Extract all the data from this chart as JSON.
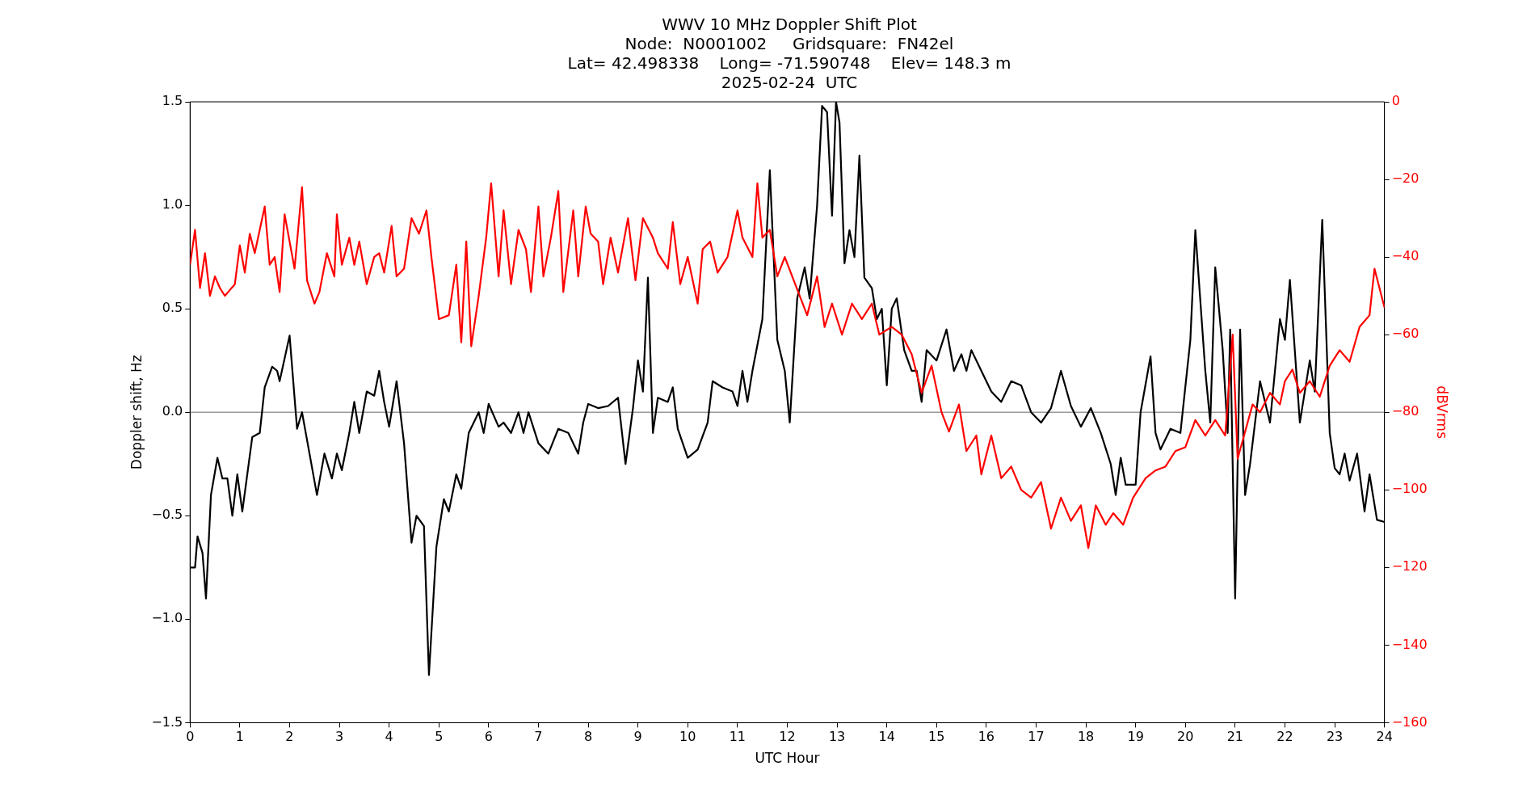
{
  "chart_data": {
    "type": "line",
    "title": "WWV 10 MHz Doppler Shift Plot\nNode:  N0001002     Gridsquare:  FN42el\nLat= 42.498338    Long= -71.590748    Elev= 148.3 m\n2025-02-24  UTC",
    "xlabel": "UTC Hour",
    "ylabel": "Doppler shift, Hz",
    "y2label": "dBVrms",
    "xlim": [
      0,
      24
    ],
    "xticks": [
      0,
      1,
      2,
      3,
      4,
      5,
      6,
      7,
      8,
      9,
      10,
      11,
      12,
      13,
      14,
      15,
      16,
      17,
      18,
      19,
      20,
      21,
      22,
      23,
      24
    ],
    "ylim": [
      -1.5,
      1.5
    ],
    "yticks": [
      {
        "value": -1.5,
        "label": "−1.5"
      },
      {
        "value": -1,
        "label": "−1.0"
      },
      {
        "value": -0.5,
        "label": "−0.5"
      },
      {
        "value": 0,
        "label": "0.0"
      },
      {
        "value": 0.5,
        "label": "0.5"
      },
      {
        "value": 1,
        "label": "1.0"
      },
      {
        "value": 1.5,
        "label": "1.5"
      }
    ],
    "y2lim": [
      -160,
      0
    ],
    "y2ticks": [
      {
        "value": -160,
        "label": "−160"
      },
      {
        "value": -140,
        "label": "−140"
      },
      {
        "value": -120,
        "label": "−120"
      },
      {
        "value": -100,
        "label": "−100"
      },
      {
        "value": -80,
        "label": "−80"
      },
      {
        "value": -60,
        "label": "−60"
      },
      {
        "value": -40,
        "label": "−40"
      },
      {
        "value": -20,
        "label": "−20"
      },
      0
    ],
    "grid": false,
    "legend": false,
    "marker": "none",
    "line_style": "solid",
    "ref_lines": [
      {
        "axis": "y",
        "value": 0,
        "color": "#999999"
      }
    ],
    "series": [
      {
        "color": "#ff0000",
        "axis": "y2",
        "x": [
          0,
          0.1,
          0.2,
          0.3,
          0.4,
          0.5,
          0.6,
          0.7,
          0.9,
          1.0,
          1.1,
          1.2,
          1.3,
          1.4,
          1.5,
          1.6,
          1.7,
          1.8,
          1.9,
          2.0,
          2.1,
          2.25,
          2.35,
          2.5,
          2.6,
          2.75,
          2.9,
          2.95,
          3.05,
          3.2,
          3.3,
          3.4,
          3.55,
          3.7,
          3.8,
          3.9,
          4.05,
          4.15,
          4.3,
          4.45,
          4.6,
          4.75,
          4.85,
          5.0,
          5.2,
          5.35,
          5.45,
          5.55,
          5.65,
          5.8,
          5.95,
          6.05,
          6.2,
          6.3,
          6.45,
          6.6,
          6.75,
          6.85,
          7.0,
          7.1,
          7.25,
          7.4,
          7.5,
          7.7,
          7.8,
          7.95,
          8.05,
          8.2,
          8.3,
          8.45,
          8.6,
          8.8,
          8.95,
          9.1,
          9.3,
          9.4,
          9.6,
          9.7,
          9.85,
          10.0,
          10.2,
          10.3,
          10.45,
          10.6,
          10.8,
          11.0,
          11.1,
          11.3,
          11.4,
          11.5,
          11.65,
          11.8,
          11.95,
          12.1,
          12.25,
          12.4,
          12.6,
          12.75,
          12.9,
          13.1,
          13.3,
          13.5,
          13.7,
          13.85,
          14.1,
          14.3,
          14.5,
          14.7,
          14.9,
          15.1,
          15.25,
          15.45,
          15.6,
          15.8,
          15.9,
          16.1,
          16.3,
          16.5,
          16.7,
          16.9,
          17.1,
          17.3,
          17.5,
          17.7,
          17.9,
          18.05,
          18.2,
          18.4,
          18.55,
          18.75,
          18.95,
          19.2,
          19.4,
          19.6,
          19.8,
          20.0,
          20.2,
          20.4,
          20.6,
          20.8,
          20.95,
          21.05,
          21.2,
          21.35,
          21.5,
          21.7,
          21.9,
          22.0,
          22.15,
          22.3,
          22.5,
          22.7,
          22.9,
          23.1,
          23.3,
          23.5,
          23.7,
          23.8,
          24.0
        ],
        "values": [
          -42,
          -33,
          -48,
          -39,
          -50,
          -45,
          -48,
          -50,
          -47,
          -37,
          -44,
          -34,
          -39,
          -33,
          -27,
          -42,
          -40,
          -49,
          -29,
          -36,
          -43,
          -22,
          -46,
          -52,
          -49,
          -39,
          -45,
          -29,
          -42,
          -35,
          -42,
          -36,
          -47,
          -40,
          -39,
          -44,
          -32,
          -45,
          -43,
          -30,
          -34,
          -28,
          -40,
          -56,
          -55,
          -42,
          -62,
          -36,
          -63,
          -50,
          -35,
          -21,
          -45,
          -28,
          -47,
          -33,
          -38,
          -49,
          -27,
          -45,
          -35,
          -23,
          -49,
          -28,
          -45,
          -27,
          -34,
          -36,
          -47,
          -35,
          -44,
          -30,
          -46,
          -30,
          -35,
          -39,
          -43,
          -31,
          -47,
          -40,
          -52,
          -38,
          -36,
          -44,
          -40,
          -28,
          -35,
          -40,
          -21,
          -35,
          -33,
          -45,
          -40,
          -45,
          -50,
          -55,
          -45,
          -58,
          -52,
          -60,
          -52,
          -56,
          -52,
          -60,
          -58,
          -60,
          -65,
          -75,
          -68,
          -80,
          -85,
          -78,
          -90,
          -86,
          -96,
          -86,
          -97,
          -94,
          -100,
          -102,
          -98,
          -110,
          -102,
          -108,
          -104,
          -115,
          -104,
          -109,
          -106,
          -109,
          -102,
          -97,
          -95,
          -94,
          -90,
          -89,
          -82,
          -86,
          -82,
          -86,
          -60,
          -92,
          -85,
          -78,
          -80,
          -75,
          -78,
          -72,
          -69,
          -75,
          -72,
          -76,
          -68,
          -64,
          -67,
          -58,
          -55,
          -43,
          -53
        ]
      },
      {
        "color": "#000000",
        "axis": "y",
        "x": [
          0,
          0.1,
          0.15,
          0.25,
          0.32,
          0.42,
          0.55,
          0.65,
          0.75,
          0.85,
          0.95,
          1.05,
          1.25,
          1.4,
          1.5,
          1.65,
          1.75,
          1.8,
          2.0,
          2.15,
          2.25,
          2.4,
          2.55,
          2.7,
          2.85,
          2.95,
          3.05,
          3.2,
          3.3,
          3.4,
          3.55,
          3.7,
          3.8,
          3.9,
          4.0,
          4.15,
          4.3,
          4.45,
          4.55,
          4.7,
          4.8,
          4.95,
          5.1,
          5.2,
          5.35,
          5.45,
          5.6,
          5.8,
          5.9,
          6.0,
          6.2,
          6.3,
          6.45,
          6.6,
          6.7,
          6.8,
          7.0,
          7.2,
          7.4,
          7.6,
          7.8,
          7.9,
          8.0,
          8.2,
          8.4,
          8.6,
          8.75,
          8.9,
          9.0,
          9.1,
          9.2,
          9.3,
          9.4,
          9.6,
          9.7,
          9.8,
          10.0,
          10.2,
          10.4,
          10.5,
          10.7,
          10.9,
          11.0,
          11.1,
          11.2,
          11.3,
          11.5,
          11.65,
          11.8,
          11.95,
          12.05,
          12.2,
          12.35,
          12.45,
          12.6,
          12.7,
          12.8,
          12.9,
          12.98,
          13.05,
          13.15,
          13.25,
          13.35,
          13.45,
          13.55,
          13.7,
          13.8,
          13.9,
          14.0,
          14.1,
          14.2,
          14.35,
          14.5,
          14.6,
          14.7,
          14.8,
          15.0,
          15.2,
          15.35,
          15.5,
          15.6,
          15.7,
          15.9,
          16.1,
          16.3,
          16.5,
          16.7,
          16.9,
          17.1,
          17.3,
          17.5,
          17.7,
          17.9,
          18.1,
          18.3,
          18.5,
          18.6,
          18.7,
          18.8,
          19.0,
          19.1,
          19.3,
          19.4,
          19.5,
          19.7,
          19.9,
          20.1,
          20.2,
          20.4,
          20.5,
          20.6,
          20.75,
          20.85,
          20.9,
          21.0,
          21.1,
          21.2,
          21.3,
          21.5,
          21.7,
          21.9,
          22.0,
          22.1,
          22.3,
          22.5,
          22.6,
          22.75,
          22.9,
          23.0,
          23.1,
          23.2,
          23.3,
          23.45,
          23.6,
          23.7,
          23.85,
          24.0
        ],
        "values": [
          -0.75,
          -0.75,
          -0.6,
          -0.68,
          -0.9,
          -0.4,
          -0.22,
          -0.32,
          -0.32,
          -0.5,
          -0.3,
          -0.48,
          -0.12,
          -0.1,
          0.12,
          0.22,
          0.2,
          0.15,
          0.37,
          -0.08,
          0.0,
          -0.2,
          -0.4,
          -0.2,
          -0.32,
          -0.2,
          -0.28,
          -0.1,
          0.05,
          -0.1,
          0.1,
          0.08,
          0.2,
          0.05,
          -0.07,
          0.15,
          -0.15,
          -0.63,
          -0.5,
          -0.55,
          -1.27,
          -0.65,
          -0.42,
          -0.48,
          -0.3,
          -0.37,
          -0.1,
          0.0,
          -0.1,
          0.04,
          -0.07,
          -0.05,
          -0.1,
          0.0,
          -0.1,
          0.0,
          -0.15,
          -0.2,
          -0.08,
          -0.1,
          -0.2,
          -0.05,
          0.04,
          0.02,
          0.03,
          0.07,
          -0.25,
          0.02,
          0.25,
          0.1,
          0.65,
          -0.1,
          0.07,
          0.05,
          0.12,
          -0.08,
          -0.22,
          -0.18,
          -0.05,
          0.15,
          0.12,
          0.1,
          0.03,
          0.2,
          0.05,
          0.2,
          0.45,
          1.17,
          0.35,
          0.2,
          -0.05,
          0.55,
          0.7,
          0.55,
          1.0,
          1.48,
          1.45,
          0.95,
          1.5,
          1.4,
          0.72,
          0.88,
          0.75,
          1.24,
          0.65,
          0.6,
          0.45,
          0.5,
          0.13,
          0.5,
          0.55,
          0.3,
          0.2,
          0.2,
          0.05,
          0.3,
          0.25,
          0.4,
          0.2,
          0.28,
          0.2,
          0.3,
          0.2,
          0.1,
          0.05,
          0.15,
          0.13,
          0.0,
          -0.05,
          0.02,
          0.2,
          0.03,
          -0.07,
          0.02,
          -0.1,
          -0.25,
          -0.4,
          -0.22,
          -0.35,
          -0.35,
          0.0,
          0.27,
          -0.1,
          -0.18,
          -0.08,
          -0.1,
          0.35,
          0.88,
          0.2,
          -0.05,
          0.7,
          0.3,
          -0.1,
          0.4,
          -0.9,
          0.4,
          -0.4,
          -0.25,
          0.15,
          -0.05,
          0.45,
          0.35,
          0.64,
          -0.05,
          0.25,
          0.1,
          0.93,
          -0.1,
          -0.27,
          -0.3,
          -0.2,
          -0.33,
          -0.2,
          -0.48,
          -0.3,
          -0.52,
          -0.53
        ]
      }
    ]
  }
}
